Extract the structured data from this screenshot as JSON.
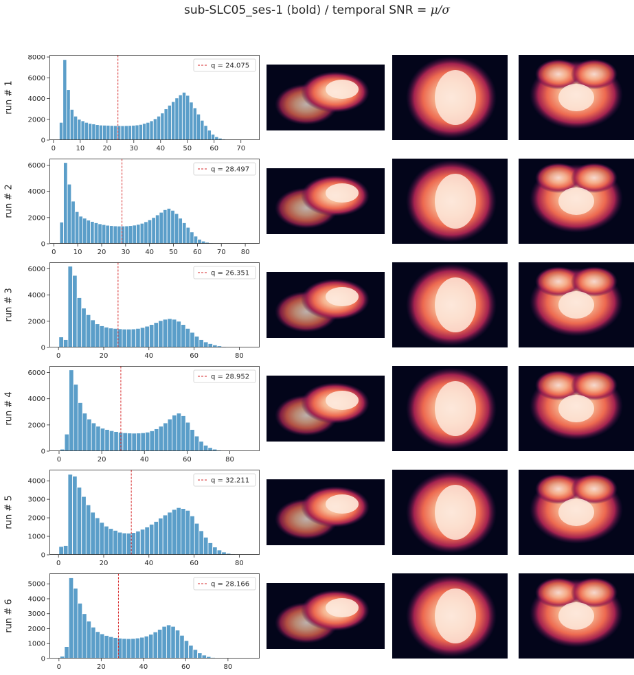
{
  "figure": {
    "title_prefix": "sub-SLC05_ses-1 (bold) / temporal SNR = ",
    "title_math": "μ/σ"
  },
  "colors": {
    "bar": "#5b9ec9",
    "bar_edge": "#ffffff",
    "threshold_line": "#d62728",
    "brain_background": "#03051a"
  },
  "chart_data": [
    {
      "type": "bar",
      "run_label": "run # 1",
      "legend": "q = 24.075",
      "legend_position": "upper right",
      "threshold": 24.075,
      "xlim": [
        -1.5,
        77
      ],
      "ylim": [
        0,
        8200
      ],
      "xticks": [
        0,
        10,
        20,
        30,
        40,
        50,
        60,
        70
      ],
      "yticks": [
        0,
        2000,
        4000,
        6000,
        8000
      ],
      "bin_start": 2.2,
      "bin_width": 1.35,
      "values": [
        1700,
        7750,
        4850,
        2950,
        2300,
        2000,
        1850,
        1700,
        1600,
        1550,
        1480,
        1440,
        1430,
        1420,
        1400,
        1390,
        1390,
        1380,
        1390,
        1400,
        1420,
        1450,
        1500,
        1600,
        1700,
        1850,
        2050,
        2300,
        2600,
        3000,
        3350,
        3700,
        4050,
        4350,
        4600,
        4300,
        3650,
        3100,
        2500,
        1900,
        1400,
        950,
        560,
        320,
        180,
        100,
        55,
        30,
        15
      ]
    },
    {
      "type": "bar",
      "run_label": "run # 2",
      "legend": "q = 28.497",
      "legend_position": "upper right",
      "threshold": 28.497,
      "xlim": [
        -1.8,
        86
      ],
      "ylim": [
        0,
        6500
      ],
      "xticks": [
        0,
        10,
        20,
        30,
        40,
        50,
        60,
        70,
        80
      ],
      "yticks": [
        0,
        2000,
        4000,
        6000
      ],
      "bin_start": 2.5,
      "bin_width": 1.6,
      "values": [
        1650,
        6200,
        4550,
        3250,
        2450,
        2100,
        1950,
        1800,
        1700,
        1600,
        1520,
        1460,
        1410,
        1380,
        1360,
        1350,
        1350,
        1360,
        1380,
        1420,
        1480,
        1560,
        1680,
        1830,
        2000,
        2200,
        2400,
        2600,
        2700,
        2550,
        2300,
        1950,
        1600,
        1250,
        900,
        580,
        340,
        200,
        110,
        60,
        30,
        15
      ]
    },
    {
      "type": "bar",
      "run_label": "run # 3",
      "legend": "q = 26.351",
      "legend_position": "upper right",
      "threshold": 26.351,
      "xlim": [
        -4,
        89
      ],
      "ylim": [
        0,
        6500
      ],
      "xticks": [
        0,
        20,
        40,
        60,
        80
      ],
      "yticks": [
        0,
        2000,
        4000,
        6000
      ],
      "bin_start": 0.2,
      "bin_width": 2.0,
      "values": [
        800,
        600,
        6200,
        5500,
        3800,
        3000,
        2500,
        2100,
        1800,
        1650,
        1550,
        1480,
        1450,
        1420,
        1400,
        1400,
        1410,
        1450,
        1520,
        1620,
        1750,
        1900,
        2050,
        2150,
        2200,
        2150,
        2000,
        1750,
        1450,
        1150,
        850,
        600,
        420,
        290,
        190,
        120,
        70,
        35,
        15
      ]
    },
    {
      "type": "bar",
      "run_label": "run # 4",
      "legend": "q = 28.952",
      "legend_position": "upper right",
      "threshold": 28.952,
      "xlim": [
        -4.5,
        94
      ],
      "ylim": [
        0,
        6500
      ],
      "xticks": [
        0,
        20,
        40,
        60,
        80
      ],
      "yticks": [
        0,
        2000,
        4000,
        6000
      ],
      "bin_start": 0.5,
      "bin_width": 2.1,
      "values": [
        150,
        1300,
        6200,
        5100,
        3700,
        2900,
        2450,
        2150,
        1900,
        1750,
        1650,
        1560,
        1490,
        1440,
        1400,
        1380,
        1370,
        1380,
        1400,
        1450,
        1550,
        1700,
        1900,
        2150,
        2450,
        2750,
        2900,
        2700,
        2200,
        1650,
        1150,
        750,
        450,
        270,
        150,
        80,
        40,
        20,
        10
      ]
    },
    {
      "type": "bar",
      "run_label": "run # 5",
      "legend": "q = 32.211",
      "legend_position": "upper right",
      "threshold": 32.211,
      "xlim": [
        -4,
        89
      ],
      "ylim": [
        0,
        4600
      ],
      "xticks": [
        0,
        20,
        40,
        60,
        80
      ],
      "yticks": [
        0,
        1000,
        2000,
        3000,
        4000
      ],
      "bin_start": 0.2,
      "bin_width": 2.0,
      "values": [
        450,
        500,
        4350,
        4250,
        3650,
        3150,
        2700,
        2300,
        2000,
        1750,
        1550,
        1420,
        1320,
        1220,
        1180,
        1170,
        1200,
        1280,
        1380,
        1500,
        1650,
        1800,
        1980,
        2150,
        2300,
        2450,
        2550,
        2500,
        2400,
        2100,
        1700,
        1300,
        950,
        650,
        420,
        260,
        150,
        80,
        40,
        15
      ]
    },
    {
      "type": "bar",
      "run_label": "run # 6",
      "legend": "q = 28.166",
      "legend_position": "upper right",
      "threshold": 28.166,
      "xlim": [
        -4.5,
        95
      ],
      "ylim": [
        0,
        5700
      ],
      "xticks": [
        0,
        20,
        40,
        60,
        80
      ],
      "yticks": [
        0,
        1000,
        2000,
        3000,
        4000,
        5000
      ],
      "bin_start": 0.5,
      "bin_width": 2.1,
      "values": [
        150,
        800,
        5400,
        4700,
        3700,
        3000,
        2500,
        2100,
        1800,
        1650,
        1540,
        1460,
        1400,
        1360,
        1340,
        1330,
        1340,
        1370,
        1420,
        1500,
        1620,
        1780,
        1950,
        2150,
        2250,
        2150,
        1900,
        1550,
        1200,
        880,
        600,
        380,
        230,
        130,
        70,
        35,
        15
      ]
    }
  ]
}
